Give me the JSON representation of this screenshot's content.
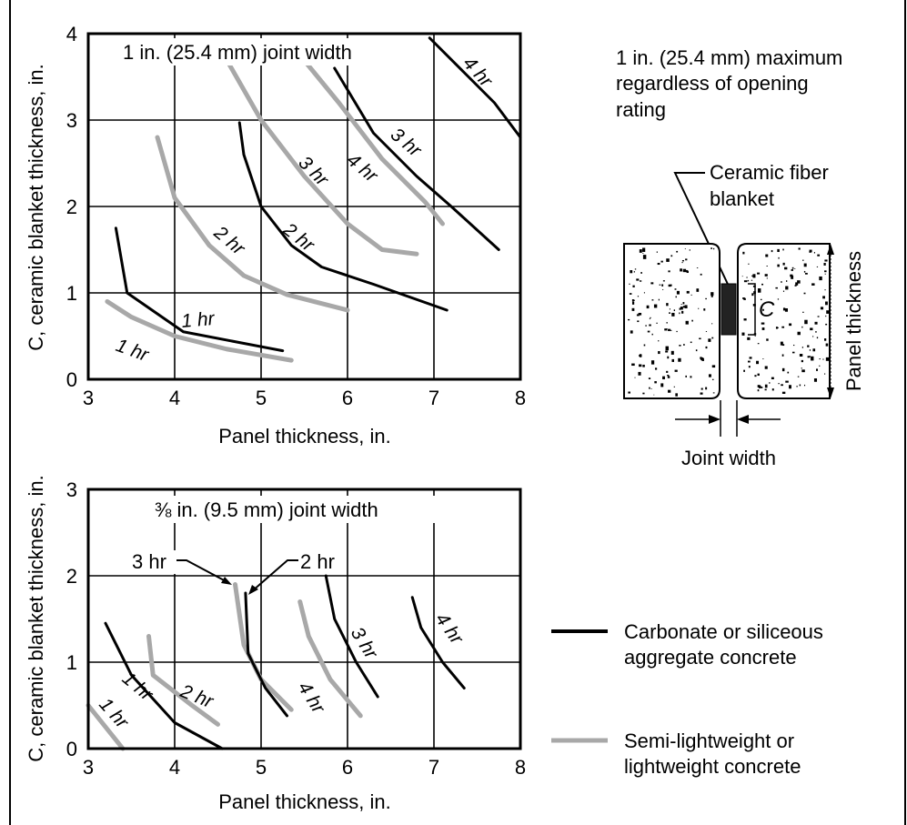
{
  "colors": {
    "carbonate": "#000000",
    "lightweight": "#a8a8a8",
    "grid": "#000000",
    "concrete_dots": "#000000"
  },
  "chart_data": [
    {
      "type": "line",
      "title": "1 in. (25.4 mm) joint width",
      "xlabel": "Panel thickness, in.",
      "ylabel": "C, ceramic blanket thickness, in.",
      "xlim": [
        3,
        8
      ],
      "ylim": [
        0,
        4
      ],
      "xticks": [
        "3",
        "4",
        "5",
        "6",
        "7",
        "8"
      ],
      "yticks": [
        "0",
        "1",
        "2",
        "3",
        "4"
      ],
      "grid": true,
      "series": [
        {
          "name": "1 hr",
          "group": "carbonate",
          "x": [
            3.32,
            3.45,
            4.1,
            5.25
          ],
          "y": [
            1.75,
            1.0,
            0.55,
            0.33
          ]
        },
        {
          "name": "2 hr",
          "group": "carbonate",
          "x": [
            4.75,
            4.8,
            5.0,
            5.35,
            5.7,
            6.3,
            7.15
          ],
          "y": [
            2.97,
            2.6,
            2.0,
            1.55,
            1.3,
            1.1,
            0.8
          ]
        },
        {
          "name": "3 hr",
          "group": "carbonate",
          "x": [
            5.85,
            6.3,
            6.8,
            7.2,
            7.75
          ],
          "y": [
            3.6,
            2.85,
            2.35,
            2.0,
            1.5
          ]
        },
        {
          "name": "4 hr",
          "group": "carbonate",
          "x": [
            6.95,
            7.35,
            7.7,
            8.0
          ],
          "y": [
            3.95,
            3.55,
            3.2,
            2.8
          ]
        },
        {
          "name": "1 hr",
          "group": "lightweight",
          "x": [
            3.22,
            3.5,
            4.0,
            4.6,
            5.35
          ],
          "y": [
            0.9,
            0.72,
            0.5,
            0.35,
            0.22
          ]
        },
        {
          "name": "2 hr",
          "group": "lightweight",
          "x": [
            3.8,
            4.0,
            4.4,
            4.8,
            5.3,
            6.0
          ],
          "y": [
            2.8,
            2.1,
            1.55,
            1.2,
            0.98,
            0.8
          ]
        },
        {
          "name": "3 hr",
          "group": "lightweight",
          "x": [
            4.6,
            5.0,
            5.5,
            6.0,
            6.4,
            6.8
          ],
          "y": [
            3.7,
            3.0,
            2.35,
            1.8,
            1.5,
            1.45
          ]
        },
        {
          "name": "4 hr",
          "group": "lightweight",
          "x": [
            5.45,
            5.9,
            6.4,
            6.9,
            7.1
          ],
          "y": [
            3.75,
            3.2,
            2.55,
            2.05,
            1.8
          ]
        }
      ],
      "annotations": [
        "1 hr",
        "2 hr",
        "3 hr",
        "4 hr",
        "1 hr",
        "2 hr",
        "3 hr",
        "4 hr"
      ]
    },
    {
      "type": "line",
      "title": "⅜ in. (9.5 mm) joint width",
      "xlabel": "Panel thickness, in.",
      "ylabel": "C, ceramic blanket thickness, in.",
      "xlim": [
        3,
        8
      ],
      "ylim": [
        0,
        3
      ],
      "xticks": [
        "3",
        "4",
        "5",
        "6",
        "7",
        "8"
      ],
      "yticks": [
        "0",
        "1",
        "2",
        "3"
      ],
      "grid": true,
      "series": [
        {
          "name": "1 hr",
          "group": "carbonate",
          "x": [
            3.2,
            3.5,
            4.0,
            4.55
          ],
          "y": [
            1.45,
            0.85,
            0.3,
            0.0
          ]
        },
        {
          "name": "2 hr",
          "group": "carbonate",
          "x": [
            4.82,
            4.85,
            5.05,
            5.3
          ],
          "y": [
            1.8,
            1.1,
            0.7,
            0.38
          ]
        },
        {
          "name": "3 hr",
          "group": "carbonate",
          "x": [
            5.75,
            5.85,
            6.1,
            6.35
          ],
          "y": [
            2.0,
            1.5,
            1.0,
            0.6
          ]
        },
        {
          "name": "4 hr",
          "group": "carbonate",
          "x": [
            6.75,
            6.85,
            7.1,
            7.35
          ],
          "y": [
            1.75,
            1.4,
            1.0,
            0.7
          ]
        },
        {
          "name": "1 hr",
          "group": "lightweight",
          "x": [
            3.0,
            3.4
          ],
          "y": [
            0.5,
            0.0
          ]
        },
        {
          "name": "2 hr",
          "group": "lightweight",
          "x": [
            3.7,
            3.75,
            4.2,
            4.5
          ],
          "y": [
            1.3,
            0.85,
            0.5,
            0.28
          ]
        },
        {
          "name": "3 hr",
          "group": "lightweight",
          "x": [
            4.7,
            4.8,
            5.0,
            5.35
          ],
          "y": [
            1.9,
            1.2,
            0.8,
            0.45
          ]
        },
        {
          "name": "4 hr",
          "group": "lightweight",
          "x": [
            5.45,
            5.55,
            5.8,
            6.15
          ],
          "y": [
            1.7,
            1.3,
            0.8,
            0.38
          ]
        }
      ],
      "annotations": [
        "3 hr",
        "2 hr",
        "1 hr",
        "2 hr",
        "1 hr",
        "3 hr",
        "4 hr",
        "4 hr"
      ]
    }
  ],
  "legend": [
    {
      "group": "carbonate",
      "line1": "Carbonate or siliceous",
      "line2": "aggregate concrete"
    },
    {
      "group": "lightweight",
      "line1": "Semi-lightweight or",
      "line2": "lightweight concrete"
    }
  ],
  "note": {
    "line1": "1 in. (25.4 mm) maximum",
    "line2": "regardless of opening",
    "line3": "rating"
  },
  "detail": {
    "blanket_line1": "Ceramic fiber",
    "blanket_line2": "blanket",
    "c_label": "C",
    "panel_thickness": "Panel thickness",
    "joint_width": "Joint width"
  }
}
